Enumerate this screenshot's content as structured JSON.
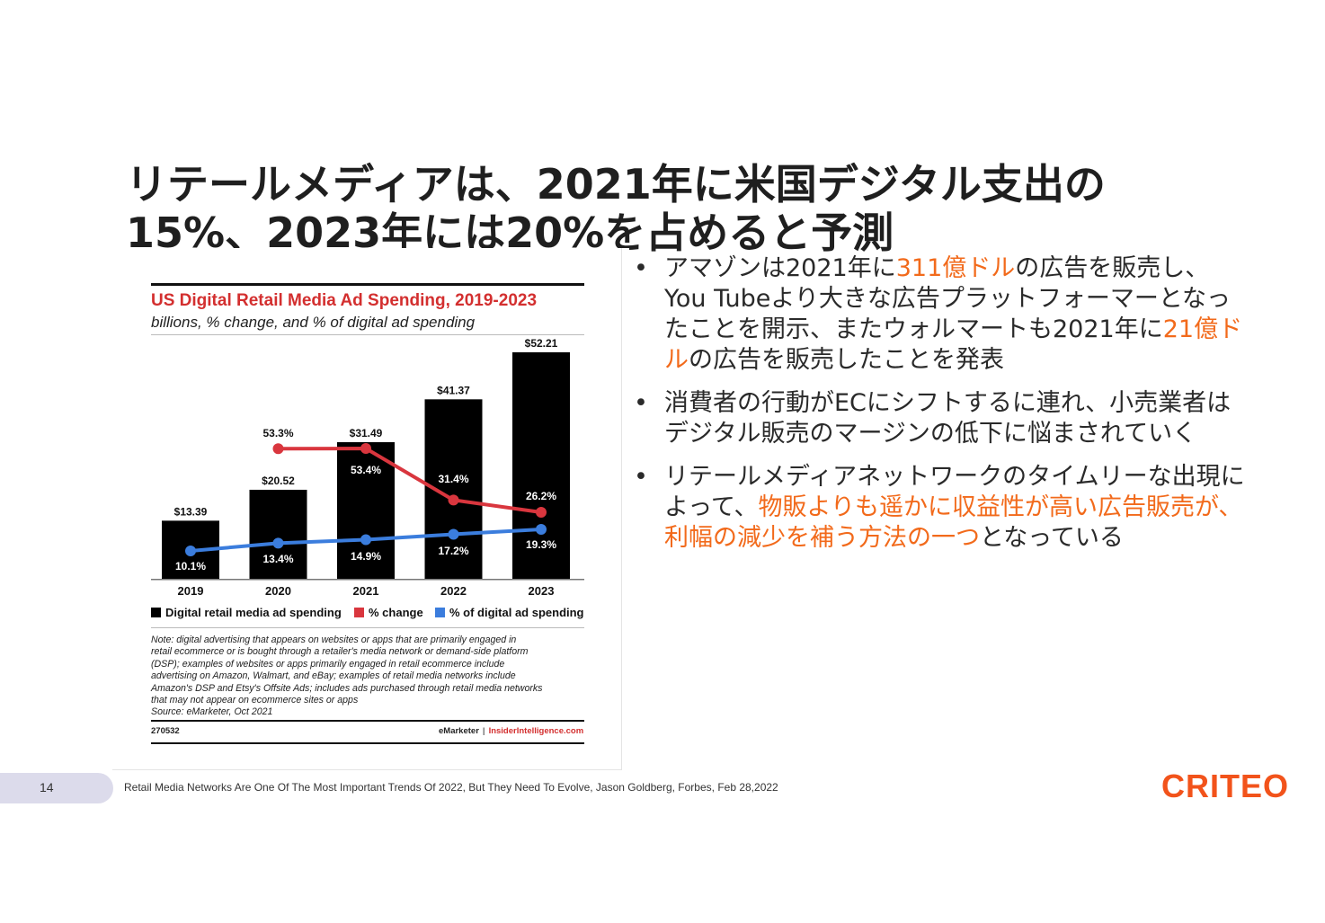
{
  "slide": {
    "title": "リテールメディアは、2021年に米国デジタル支出の15%、2023年には20%を占めると予測",
    "page_number": "14",
    "source": "Retail Media Networks Are One Of The Most Important Trends Of 2022, But They Need To Evolve, Jason Goldberg, Forbes, Feb 28,2022",
    "logo": "CRITEO"
  },
  "bullets": [
    {
      "segments": [
        {
          "text": "アマゾンは2021年に",
          "hl": false
        },
        {
          "text": "311億ドル",
          "hl": true
        },
        {
          "text": "の広告を販売し、You Tubeより大きな広告プラットフォーマーとなったことを開示、またウォルマートも2021年に",
          "hl": false
        },
        {
          "text": "21億ドル",
          "hl": true
        },
        {
          "text": "の広告を販売したことを発表",
          "hl": false
        }
      ]
    },
    {
      "segments": [
        {
          "text": "消費者の行動がECにシフトするに連れ、小売業者はデジタル販売のマージンの低下に悩まされていく",
          "hl": false
        }
      ]
    },
    {
      "segments": [
        {
          "text": "リテールメディアネットワークのタイムリーな出現によって、",
          "hl": false
        },
        {
          "text": "物販よりも遥かに収益性が高い広告販売が、利幅の減少を補う方法の一つ",
          "hl": true
        },
        {
          "text": "となっている",
          "hl": false
        }
      ]
    }
  ],
  "chart_data": {
    "type": "bar",
    "title": "US Digital Retail Media Ad Spending, 2019-2023",
    "subtitle": "billions, % change, and % of digital ad spending",
    "categories": [
      "2019",
      "2020",
      "2021",
      "2022",
      "2023"
    ],
    "series": [
      {
        "name": "Digital retail media ad spending",
        "kind": "bar",
        "color": "#000000",
        "values": [
          13.39,
          20.52,
          31.49,
          41.37,
          52.21
        ],
        "labels": [
          "$13.39",
          "$20.52",
          "$31.49",
          "$41.37",
          "$52.21"
        ]
      },
      {
        "name": "% change",
        "kind": "line",
        "color": "#d9363e",
        "values": [
          null,
          53.3,
          53.4,
          31.4,
          26.2
        ],
        "labels": [
          "",
          "53.3%",
          "53.4%",
          "31.4%",
          "26.2%"
        ]
      },
      {
        "name": "% of digital ad spending",
        "kind": "line",
        "color": "#3b7ddd",
        "values": [
          10.1,
          13.4,
          14.9,
          17.2,
          19.3
        ],
        "labels": [
          "10.1%",
          "13.4%",
          "14.9%",
          "17.2%",
          "19.3%"
        ]
      }
    ],
    "legend": [
      "Digital retail media ad spending",
      "% change",
      "% of digital ad spending"
    ],
    "legend_position": "bottom",
    "note": [
      "Note: digital advertising that appears on websites or apps that are primarily engaged in",
      "retail ecommerce or is bought through a retailer's media network or demand-side platform",
      "(DSP); examples of websites or apps primarily engaged in retail ecommerce include",
      "advertising on Amazon, Walmart, and eBay; examples of retail media networks include",
      "Amazon's DSP and Etsy's Offsite Ads; includes ads purchased through retail media networks",
      "that may not appear on ecommerce sites or apps",
      "Source: eMarketer, Oct 2021"
    ],
    "chart_id": "270532",
    "brand_left": "eMarketer",
    "brand_sep": "|",
    "brand_right": "InsiderIntelligence.com"
  }
}
